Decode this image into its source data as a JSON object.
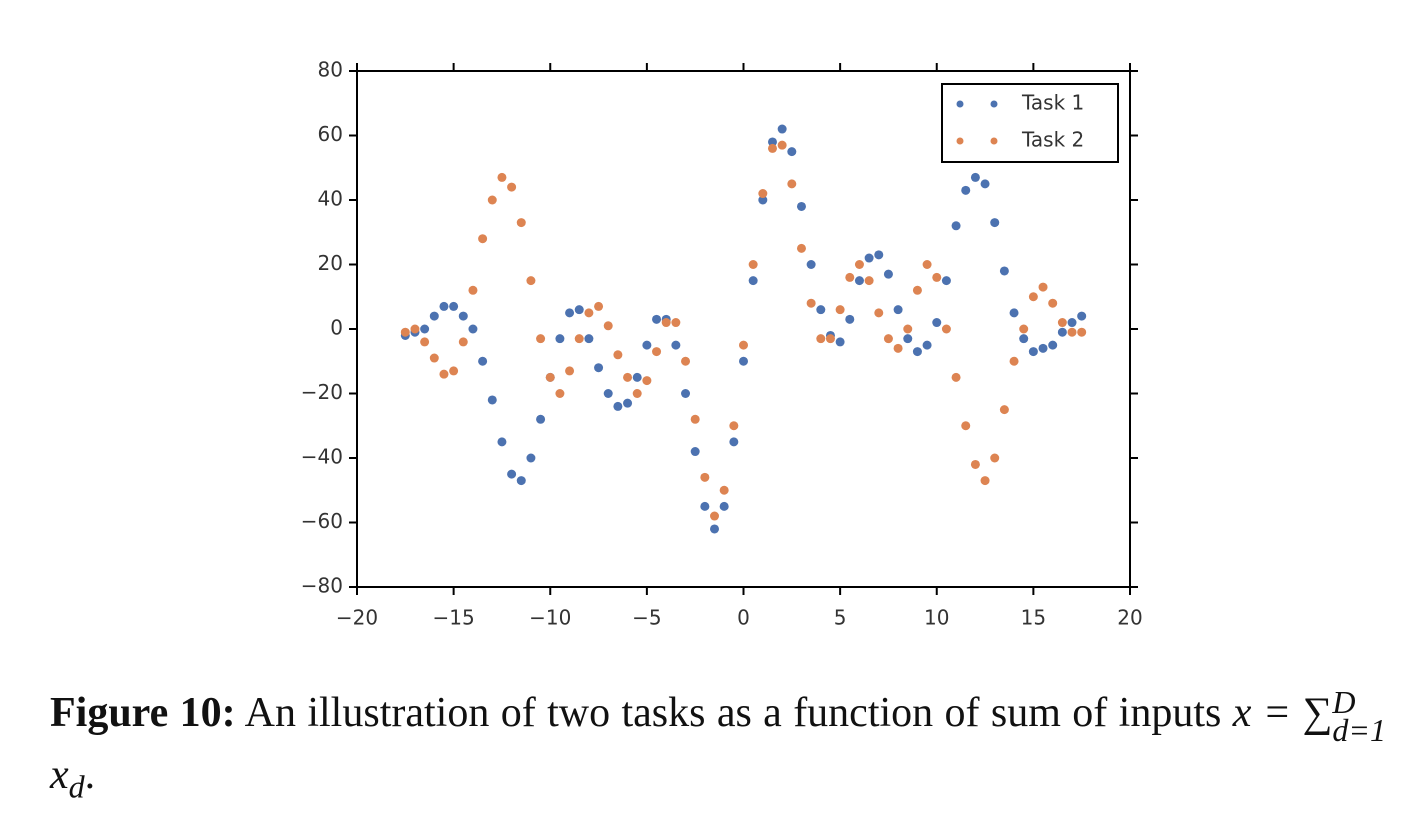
{
  "chart_data": {
    "type": "scatter",
    "x": [
      -17.5,
      -17,
      -16.5,
      -16,
      -15.5,
      -15,
      -14.5,
      -14,
      -13.5,
      -13,
      -12.5,
      -12,
      -11.5,
      -11,
      -10.5,
      -10,
      -9.5,
      -9,
      -8.5,
      -8,
      -7.5,
      -7,
      -6.5,
      -6,
      -5.5,
      -5,
      -4.5,
      -4,
      -3.5,
      -3,
      -2.5,
      -2,
      -1.5,
      -1,
      -0.5,
      0,
      0.5,
      1,
      1.5,
      2,
      2.5,
      3,
      3.5,
      4,
      4.5,
      5,
      5.5,
      6,
      6.5,
      7,
      7.5,
      8,
      8.5,
      9,
      9.5,
      10,
      10.5,
      11,
      11.5,
      12,
      12.5,
      13,
      13.5,
      14,
      14.5,
      15,
      15.5,
      16,
      16.5,
      17,
      17.5
    ],
    "series": [
      {
        "name": "Task 1",
        "color": "#4c72b0",
        "values": [
          -2,
          -1,
          0,
          4,
          7,
          7,
          4,
          0,
          -10,
          -22,
          -35,
          -45,
          -47,
          -40,
          -28,
          -15,
          -3,
          5,
          6,
          -3,
          -12,
          -20,
          -24,
          -23,
          -15,
          -5,
          3,
          3,
          -5,
          -20,
          -38,
          -55,
          -62,
          -55,
          -35,
          -10,
          15,
          40,
          58,
          62,
          55,
          38,
          20,
          6,
          -2,
          -4,
          3,
          15,
          22,
          23,
          17,
          6,
          -3,
          -7,
          -5,
          2,
          15,
          32,
          43,
          47,
          45,
          33,
          18,
          5,
          -3,
          -7,
          -6,
          -5,
          -1,
          2,
          4
        ]
      },
      {
        "name": "Task 2",
        "color": "#dd8452",
        "values": [
          -1,
          0,
          -4,
          -9,
          -14,
          -13,
          -4,
          12,
          28,
          40,
          47,
          44,
          33,
          15,
          -3,
          -15,
          -20,
          -13,
          -3,
          5,
          7,
          1,
          -8,
          -15,
          -20,
          -16,
          -7,
          2,
          2,
          -10,
          -28,
          -46,
          -58,
          -50,
          -30,
          -5,
          20,
          42,
          56,
          57,
          45,
          25,
          8,
          -3,
          -3,
          6,
          16,
          20,
          15,
          5,
          -3,
          -6,
          0,
          12,
          20,
          16,
          0,
          -15,
          -30,
          -42,
          -47,
          -40,
          -25,
          -10,
          0,
          10,
          13,
          8,
          2,
          -1,
          -1
        ]
      }
    ],
    "xlim": [
      -20,
      20
    ],
    "ylim": [
      -80,
      80
    ],
    "xticks": [
      {
        "value": -20,
        "label": "−20"
      },
      {
        "value": -15,
        "label": "−15"
      },
      {
        "value": -10,
        "label": "−10"
      },
      {
        "value": -5,
        "label": "−5"
      },
      0,
      5,
      10,
      15,
      20
    ],
    "yticks": [
      {
        "value": -80,
        "label": "−80"
      },
      {
        "value": -60,
        "label": "−60"
      },
      {
        "value": -40,
        "label": "−40"
      },
      {
        "value": -20,
        "label": "−20"
      },
      0,
      20,
      40,
      60,
      80
    ],
    "legend": "upper right",
    "grid": false
  },
  "caption": {
    "label": "Figure 10:",
    "text": "An illustration of two tasks as a function of sum of inputs",
    "math": [
      "x = ∑",
      "D",
      "d=1",
      "x",
      "d",
      "."
    ]
  }
}
